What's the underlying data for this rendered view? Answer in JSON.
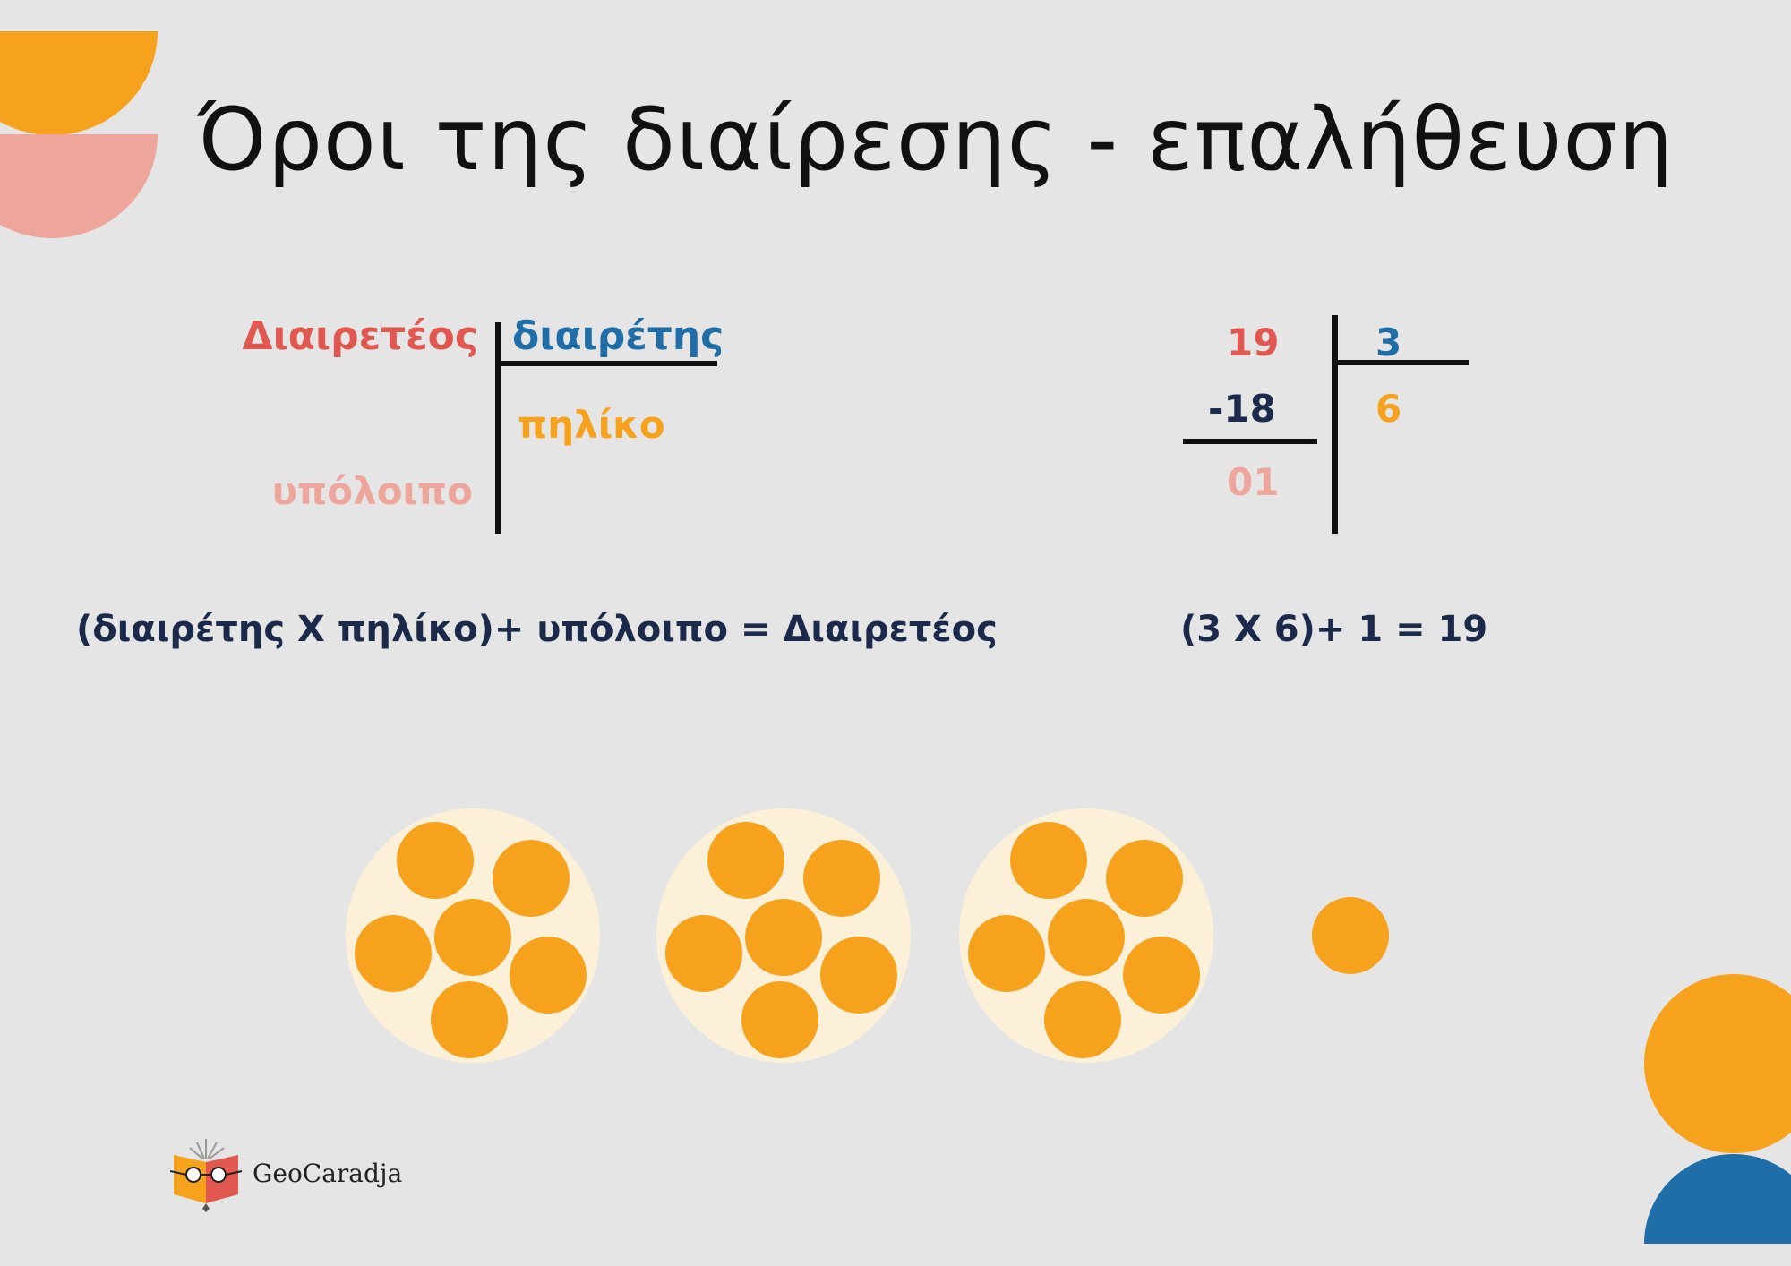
{
  "title": "Όροι της διαίρεσης - επαλήθευση",
  "colors": {
    "dividend": "#e0584f",
    "divisor": "#1f6ea8",
    "quotient": "#f7a21c",
    "remainder": "#eea59c",
    "dark": "#1b2a4a"
  },
  "terms": {
    "dividend": "Διαιρετέος",
    "divisor": "διαιρέτης",
    "quotient": "πηλίκο",
    "remainder": "υπόλοιπο"
  },
  "example": {
    "dividend": "19",
    "divisor": "3",
    "subtract": "-18",
    "quotient": "6",
    "remainder": "01"
  },
  "formula": "(διαιρέτης Χ πηλίκο)+ υπόλοιπο = Διαιρετέος",
  "check": "(3 Χ 6)+ 1 = 19",
  "groups": {
    "count": 3,
    "per_group": 6,
    "leftover": 1
  },
  "logo": {
    "text": "GeoCaradja",
    "icon": "book-glasses-icon"
  }
}
